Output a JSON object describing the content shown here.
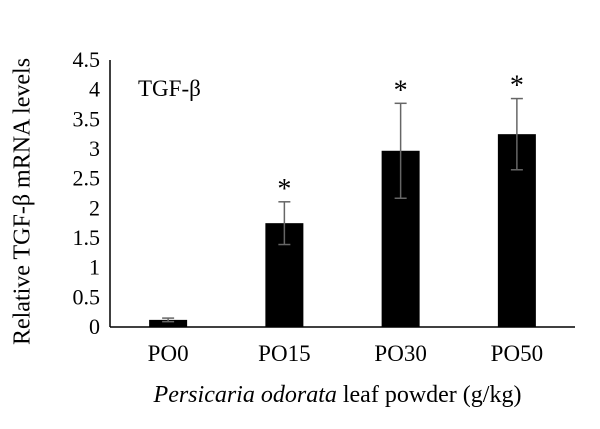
{
  "chart_data": {
    "type": "bar",
    "inner_label": "TGF-β",
    "xlabel_italic": "Persicaria odorata",
    "xlabel_rest": " leaf powder (g/kg)",
    "ylabel": "Relative TGF-β mRNA levels",
    "categories": [
      "PO0",
      "PO15",
      "PO30",
      "PO50"
    ],
    "values": [
      0.12,
      1.75,
      2.97,
      3.25
    ],
    "error": [
      0.03,
      0.36,
      0.8,
      0.6
    ],
    "significance": [
      "",
      "*",
      "*",
      "*"
    ],
    "ylim": [
      0,
      4.5
    ],
    "yticks": [
      "0",
      "0.5",
      "1",
      "1.5",
      "2",
      "2.5",
      "3",
      "3.5",
      "4",
      "4.5"
    ],
    "bar_color": "#000000",
    "error_color": "#666666",
    "grid": false
  }
}
